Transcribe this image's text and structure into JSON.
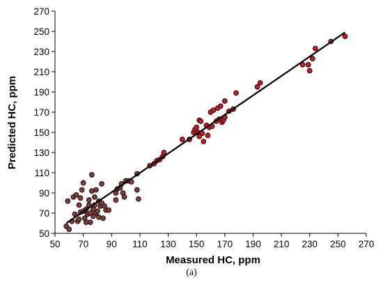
{
  "chart_data": {
    "type": "scatter",
    "xlabel": "Measured HC, ppm",
    "ylabel": "Predicted HC, ppm",
    "xlim": [
      50,
      270
    ],
    "ylim": [
      50,
      270
    ],
    "x_ticks": [
      50,
      70,
      90,
      110,
      130,
      150,
      170,
      190,
      210,
      230,
      250,
      270
    ],
    "y_ticks": [
      50,
      70,
      90,
      110,
      130,
      150,
      170,
      190,
      210,
      230,
      250,
      270
    ],
    "grid": false,
    "legend": "none",
    "colors": {
      "high_fill": "#d8141c",
      "low_fill": "#8b3a3a",
      "outline": "#000000",
      "fit_line": "#000000"
    },
    "fit_line": {
      "x": [
        58,
        255
      ],
      "y": [
        60,
        249
      ]
    },
    "points": [
      [
        58,
        57
      ],
      [
        59,
        82
      ],
      [
        60,
        54
      ],
      [
        62,
        62
      ],
      [
        63,
        86
      ],
      [
        64,
        69
      ],
      [
        65,
        88
      ],
      [
        66,
        62
      ],
      [
        67,
        64
      ],
      [
        67,
        78
      ],
      [
        68,
        71
      ],
      [
        68,
        85
      ],
      [
        69,
        93
      ],
      [
        70,
        72
      ],
      [
        70,
        100
      ],
      [
        71,
        65
      ],
      [
        72,
        61
      ],
      [
        72,
        74
      ],
      [
        73,
        69
      ],
      [
        74,
        78
      ],
      [
        74,
        83
      ],
      [
        75,
        61
      ],
      [
        75,
        70
      ],
      [
        76,
        92
      ],
      [
        76,
        108
      ],
      [
        77,
        67
      ],
      [
        77,
        74
      ],
      [
        78,
        78
      ],
      [
        78,
        86
      ],
      [
        79,
        70
      ],
      [
        79,
        93
      ],
      [
        80,
        72
      ],
      [
        81,
        66
      ],
      [
        81,
        82
      ],
      [
        82,
        77
      ],
      [
        83,
        80
      ],
      [
        83,
        99
      ],
      [
        84,
        65
      ],
      [
        85,
        77
      ],
      [
        86,
        73
      ],
      [
        88,
        73
      ],
      [
        93,
        90
      ],
      [
        93,
        83
      ],
      [
        94,
        94
      ],
      [
        96,
        95
      ],
      [
        97,
        99
      ],
      [
        98,
        90
      ],
      [
        99,
        86
      ],
      [
        100,
        102
      ],
      [
        102,
        102
      ],
      [
        104,
        101
      ],
      [
        108,
        109
      ],
      [
        108,
        93
      ],
      [
        109,
        84
      ],
      [
        117,
        117
      ],
      [
        120,
        119
      ],
      [
        122,
        122
      ],
      [
        124,
        123
      ],
      [
        126,
        126
      ],
      [
        127,
        130
      ],
      [
        140,
        143
      ],
      [
        145,
        143
      ],
      [
        148,
        150
      ],
      [
        149,
        153
      ],
      [
        150,
        155
      ],
      [
        151,
        150
      ],
      [
        152,
        146
      ],
      [
        152,
        162
      ],
      [
        153,
        161
      ],
      [
        154,
        149
      ],
      [
        155,
        141
      ],
      [
        157,
        157
      ],
      [
        158,
        147
      ],
      [
        159,
        155
      ],
      [
        160,
        170
      ],
      [
        161,
        156
      ],
      [
        162,
        172
      ],
      [
        164,
        161
      ],
      [
        165,
        174
      ],
      [
        166,
        163
      ],
      [
        167,
        176
      ],
      [
        168,
        160
      ],
      [
        169,
        162
      ],
      [
        170,
        165
      ],
      [
        170,
        181
      ],
      [
        173,
        171
      ],
      [
        176,
        173
      ],
      [
        178,
        189
      ],
      [
        193,
        195
      ],
      [
        195,
        199
      ],
      [
        225,
        217
      ],
      [
        229,
        217
      ],
      [
        230,
        211
      ],
      [
        232,
        223
      ],
      [
        234,
        233
      ],
      [
        245,
        240
      ],
      [
        255,
        245
      ]
    ]
  },
  "caption": "(a)"
}
